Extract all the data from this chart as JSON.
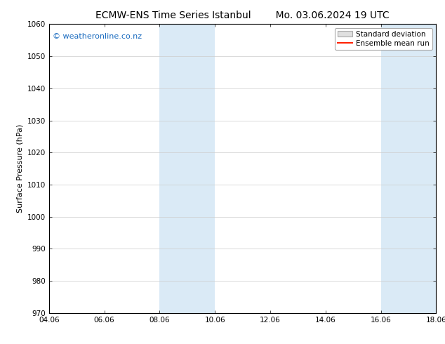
{
  "title_left": "ECMW-ENS Time Series Istanbul",
  "title_right": "Mo. 03.06.2024 19 UTC",
  "ylabel": "Surface Pressure (hPa)",
  "xlim": [
    4.06,
    18.06
  ],
  "ylim": [
    970,
    1060
  ],
  "yticks": [
    970,
    980,
    990,
    1000,
    1010,
    1020,
    1030,
    1040,
    1050,
    1060
  ],
  "xticks": [
    4.06,
    6.06,
    8.06,
    10.06,
    12.06,
    14.06,
    16.06,
    18.06
  ],
  "xticklabels": [
    "04.06",
    "06.06",
    "08.06",
    "10.06",
    "12.06",
    "14.06",
    "16.06",
    "18.06"
  ],
  "shaded_bands": [
    {
      "x_start": 8.06,
      "x_end": 10.06
    },
    {
      "x_start": 16.06,
      "x_end": 18.06
    }
  ],
  "shaded_color": "#daeaf6",
  "watermark_text": "© weatheronline.co.nz",
  "watermark_color": "#1a6bbf",
  "watermark_fontsize": 8,
  "legend_std_label": "Standard deviation",
  "legend_mean_label": "Ensemble mean run",
  "legend_std_facecolor": "#e0e0e0",
  "legend_std_edgecolor": "#aaaaaa",
  "legend_mean_color": "#ff2200",
  "background_color": "#ffffff",
  "grid_color": "#cccccc",
  "title_fontsize": 10,
  "axis_fontsize": 7.5,
  "ylabel_fontsize": 8,
  "legend_fontsize": 7.5
}
